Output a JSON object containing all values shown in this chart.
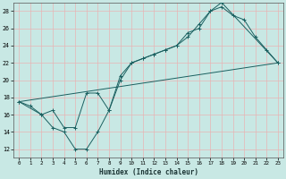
{
  "xlabel": "Humidex (Indice chaleur)",
  "ylabel": "",
  "bg_color": "#c8e8e4",
  "grid_color": "#e8b4b4",
  "line_color": "#1a6060",
  "xlim": [
    -0.5,
    23.5
  ],
  "ylim": [
    11,
    29
  ],
  "xticks": [
    0,
    1,
    2,
    3,
    4,
    5,
    6,
    7,
    8,
    9,
    10,
    11,
    12,
    13,
    14,
    15,
    16,
    17,
    18,
    19,
    20,
    21,
    22,
    23
  ],
  "yticks": [
    12,
    14,
    16,
    18,
    20,
    22,
    24,
    26,
    28
  ],
  "series1_x": [
    0,
    1,
    2,
    3,
    4,
    5,
    6,
    7,
    8,
    9,
    10,
    11,
    12,
    13,
    14,
    15,
    16,
    17,
    18,
    19,
    20,
    21,
    22,
    23
  ],
  "series1_y": [
    17.5,
    17.0,
    16.0,
    14.5,
    14.0,
    12.0,
    12.0,
    14.0,
    16.5,
    20.5,
    22.0,
    22.5,
    23.0,
    23.5,
    24.0,
    25.0,
    26.5,
    28.0,
    28.5,
    27.5,
    27.0,
    25.0,
    23.5,
    22.0
  ],
  "series2_x": [
    0,
    2,
    3,
    4,
    5,
    6,
    7,
    8,
    9,
    10,
    11,
    12,
    13,
    14,
    15,
    16,
    17,
    18,
    23
  ],
  "series2_y": [
    17.5,
    16.0,
    16.5,
    14.5,
    14.5,
    18.5,
    18.5,
    16.5,
    20.0,
    22.0,
    22.5,
    23.0,
    23.5,
    24.0,
    25.5,
    26.0,
    28.0,
    29.0,
    22.0
  ],
  "series3_x": [
    0,
    23
  ],
  "series3_y": [
    17.5,
    22.0
  ]
}
